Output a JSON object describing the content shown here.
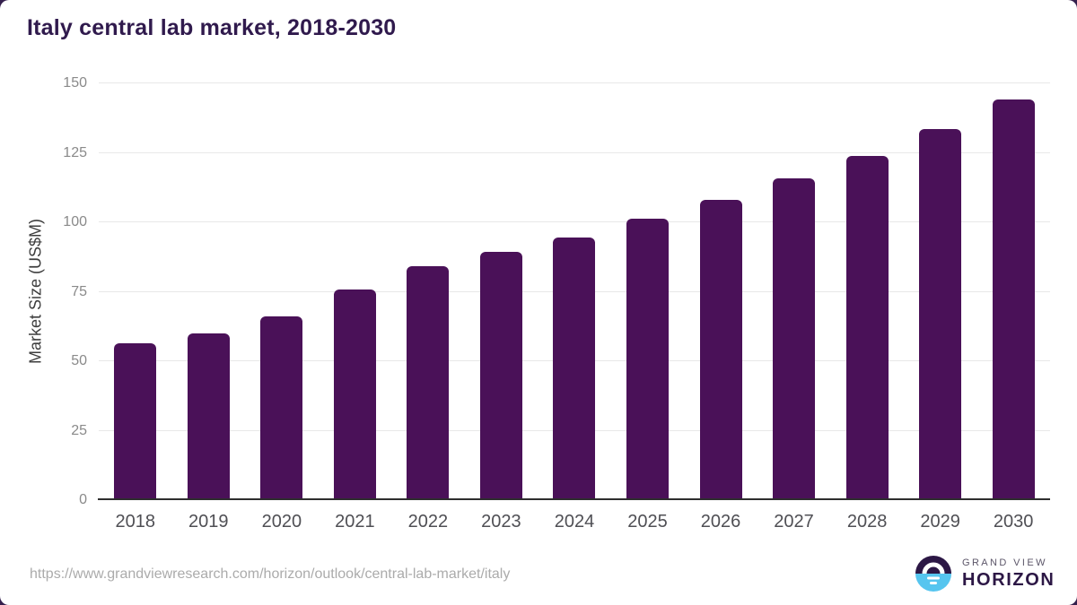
{
  "page": {
    "title": "Italy central lab market, 2018-2030",
    "source_url": "https://www.grandviewresearch.com/horizon/outlook/central-lab-market/italy"
  },
  "logo": {
    "top_text": "GRAND VIEW",
    "bottom_text": "HORIZON"
  },
  "colors": {
    "background": "#ffffff",
    "title": "#301a4d",
    "bar": "#4a1158",
    "grid": "#e8e8e8",
    "axis_line": "#2e2e2e",
    "y_tick": "#8a8a8a",
    "x_tick": "#4f4f54",
    "axis_title": "#3d3d3d",
    "url": "#ababab",
    "logo_dark": "#2c1745",
    "logo_gray": "#5c5669",
    "logo_blue": "#56c5ef"
  },
  "chart_data": {
    "type": "bar",
    "title": "Italy central lab market, 2018-2030",
    "categories": [
      "2018",
      "2019",
      "2020",
      "2021",
      "2022",
      "2023",
      "2024",
      "2025",
      "2026",
      "2027",
      "2028",
      "2029",
      "2030"
    ],
    "values": [
      56.4,
      60.0,
      66.0,
      75.8,
      84.2,
      89.2,
      94.5,
      101.4,
      108.1,
      115.8,
      124.0,
      133.4,
      144.1
    ],
    "xlabel": "",
    "ylabel": "Market Size (US$M)",
    "ylim": [
      0,
      150
    ],
    "yticks": [
      0,
      25,
      50,
      75,
      100,
      125,
      150
    ],
    "grid": true,
    "legend": false,
    "bar_color": "#4a1158"
  }
}
